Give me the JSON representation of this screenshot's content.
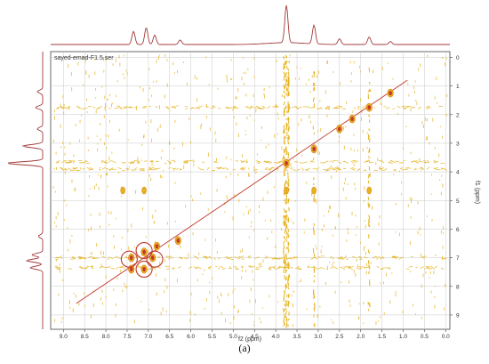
{
  "figure": {
    "dataset_label": "sayed-emad-F1.5.ser",
    "caption": "(a)"
  },
  "chart_data": {
    "type": "scatter",
    "subtype": "2D NMR contour map (COSY-style) with 1D projections",
    "xlabel": "f2 (ppm)",
    "ylabel": "f1 (ppm)",
    "xlim": [
      9.3,
      -0.1
    ],
    "ylim": [
      9.5,
      -0.2
    ],
    "x_axis_reversed": true,
    "y_axis_reversed": true,
    "x_ticks": [
      "9.0",
      "8.5",
      "8.0",
      "7.5",
      "7.0",
      "6.5",
      "6.0",
      "5.5",
      "5.0",
      "4.5",
      "4.0",
      "3.5",
      "3.0",
      "2.5",
      "2.0",
      "1.5",
      "1.0",
      "0.5",
      "0.0"
    ],
    "y_ticks": [
      "0",
      "1",
      "2",
      "3",
      "4",
      "5",
      "6",
      "7",
      "8",
      "9"
    ],
    "grid": true,
    "colors": {
      "contour": "#e6b320",
      "strong_peak": "#c0392b",
      "diagonal": "#c0392b",
      "projection": "#a33a3a",
      "circle": "#c0392b"
    },
    "diagonal_line": {
      "from": [
        8.7,
        8.6
      ],
      "to": [
        0.9,
        0.8
      ]
    },
    "diagonal_peaks": [
      {
        "x": 7.4,
        "y": 7.0
      },
      {
        "x": 7.1,
        "y": 6.8
      },
      {
        "x": 6.9,
        "y": 7.0
      },
      {
        "x": 7.1,
        "y": 7.4
      },
      {
        "x": 7.4,
        "y": 7.4
      },
      {
        "x": 3.75,
        "y": 3.7
      },
      {
        "x": 3.1,
        "y": 3.2
      },
      {
        "x": 2.5,
        "y": 2.5
      },
      {
        "x": 2.2,
        "y": 2.15
      },
      {
        "x": 1.8,
        "y": 1.75
      },
      {
        "x": 1.3,
        "y": 1.25
      },
      {
        "x": 6.3,
        "y": 6.4
      },
      {
        "x": 6.8,
        "y": 6.6
      }
    ],
    "cross_peaks": [
      {
        "x": 3.75,
        "y": 4.65
      },
      {
        "x": 3.1,
        "y": 4.65
      },
      {
        "x": 1.8,
        "y": 4.65
      },
      {
        "x": 7.1,
        "y": 4.65
      },
      {
        "x": 7.6,
        "y": 4.65
      }
    ],
    "circled_peaks": [
      {
        "x": 7.45,
        "y": 7.05
      },
      {
        "x": 7.1,
        "y": 6.75
      },
      {
        "x": 6.85,
        "y": 7.05
      },
      {
        "x": 7.1,
        "y": 7.4
      }
    ],
    "top_projection": [
      {
        "ppm": 7.35,
        "height": 0.35
      },
      {
        "ppm": 7.05,
        "height": 0.45
      },
      {
        "ppm": 6.85,
        "height": 0.25
      },
      {
        "ppm": 6.25,
        "height": 0.12
      },
      {
        "ppm": 3.75,
        "height": 1.0
      },
      {
        "ppm": 3.1,
        "height": 0.5
      },
      {
        "ppm": 2.5,
        "height": 0.15
      },
      {
        "ppm": 1.8,
        "height": 0.2
      },
      {
        "ppm": 1.3,
        "height": 0.08
      }
    ],
    "left_projection": [
      {
        "ppm": 1.2,
        "height": 0.15
      },
      {
        "ppm": 1.75,
        "height": 0.2
      },
      {
        "ppm": 2.5,
        "height": 0.15
      },
      {
        "ppm": 3.1,
        "height": 0.55
      },
      {
        "ppm": 3.7,
        "height": 1.0
      },
      {
        "ppm": 6.25,
        "height": 0.12
      },
      {
        "ppm": 6.9,
        "height": 0.3
      },
      {
        "ppm": 7.1,
        "height": 0.45
      },
      {
        "ppm": 7.35,
        "height": 0.35
      }
    ]
  }
}
